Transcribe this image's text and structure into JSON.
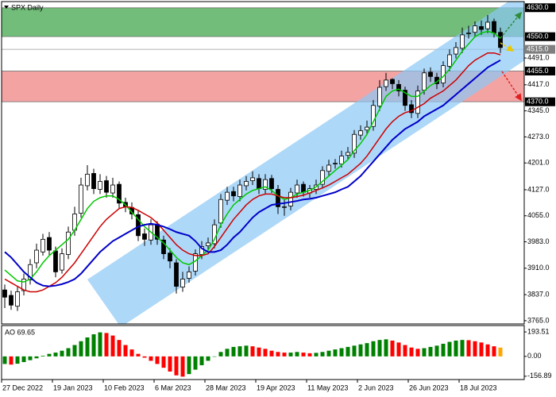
{
  "chart_data": [
    {
      "type": "candlestick",
      "title": "SPX Daily",
      "categories": [
        "27 Dec 2022",
        null,
        null,
        null,
        null,
        null,
        null,
        null,
        "19 Jan 2023",
        null,
        null,
        null,
        null,
        null,
        null,
        null,
        "10 Feb 2023",
        null,
        null,
        null,
        null,
        null,
        null,
        null,
        "6 Mar 2023",
        null,
        null,
        null,
        null,
        null,
        null,
        null,
        "28 Mar 2023",
        null,
        null,
        null,
        null,
        null,
        null,
        null,
        "19 Apr 2023",
        null,
        null,
        null,
        null,
        null,
        null,
        null,
        "11 May 2023",
        null,
        null,
        null,
        null,
        null,
        null,
        null,
        "2 Jun 2023",
        null,
        null,
        null,
        null,
        null,
        null,
        null,
        "26 Jun 2023",
        null,
        null,
        null,
        null,
        null,
        null,
        null,
        "18 Jul 2023",
        null,
        null,
        null,
        null,
        null,
        null
      ],
      "open": [
        3850,
        3835,
        3805,
        3848,
        3878,
        3925,
        3955,
        3995,
        3958,
        3905,
        3948,
        4015,
        4062,
        4138,
        4172,
        4128,
        4152,
        4118,
        4142,
        4092,
        4078,
        4058,
        4005,
        3988,
        4032,
        3988,
        3952,
        3925,
        3858,
        3882,
        3902,
        3948,
        3972,
        3978,
        4035,
        4098,
        4122,
        4108,
        4138,
        4152,
        4158,
        4128,
        4158,
        4128,
        4078,
        4082,
        4118,
        4142,
        4118,
        4128,
        4142,
        4178,
        4198,
        4198,
        4222,
        4228,
        4278,
        4292,
        4302,
        4358,
        4412,
        4432,
        4418,
        4402,
        4362,
        4338,
        4402,
        4452,
        4438,
        4422,
        4468,
        4502,
        4518,
        4558,
        4562,
        4578,
        4572,
        4592,
        4562
      ],
      "high": [
        3865,
        3848,
        3858,
        3895,
        3935,
        3978,
        4005,
        4010,
        3970,
        3965,
        4025,
        4080,
        4160,
        4195,
        4185,
        4170,
        4165,
        4160,
        4150,
        4105,
        4092,
        4070,
        4020,
        4045,
        4040,
        4000,
        3965,
        3935,
        3900,
        3915,
        3962,
        3985,
        3995,
        4045,
        4115,
        4135,
        4135,
        4155,
        4165,
        4178,
        4170,
        4170,
        4168,
        4140,
        4100,
        4132,
        4155,
        4150,
        4140,
        4155,
        4192,
        4210,
        4212,
        4235,
        4245,
        4292,
        4305,
        4318,
        4375,
        4430,
        4450,
        4435,
        4430,
        4412,
        4375,
        4415,
        4462,
        4465,
        4450,
        4482,
        4515,
        4535,
        4575,
        4580,
        4592,
        4595,
        4610,
        4600,
        4575
      ],
      "low": [
        3800,
        3795,
        3792,
        3835,
        3865,
        3910,
        3945,
        3945,
        3885,
        3895,
        3935,
        4000,
        4050,
        4125,
        4115,
        4115,
        4105,
        4105,
        4075,
        4065,
        4045,
        3985,
        3972,
        3975,
        3975,
        3935,
        3910,
        3840,
        3845,
        3870,
        3890,
        3935,
        3960,
        3965,
        4022,
        4085,
        4095,
        4095,
        4125,
        4140,
        4115,
        4115,
        4118,
        4060,
        4055,
        4070,
        4105,
        4108,
        4105,
        4115,
        4130,
        4165,
        4185,
        4188,
        4210,
        4215,
        4265,
        4280,
        4290,
        4345,
        4400,
        4405,
        4385,
        4345,
        4325,
        4325,
        4390,
        4425,
        4405,
        4410,
        4455,
        4490,
        4505,
        4545,
        4550,
        4555,
        4560,
        4548,
        4505
      ],
      "close": [
        3830,
        3808,
        3845,
        3880,
        3920,
        3960,
        3990,
        3960,
        3900,
        3950,
        4010,
        4060,
        4140,
        4170,
        4130,
        4150,
        4120,
        4140,
        4090,
        4080,
        4060,
        4000,
        3990,
        4030,
        3990,
        3950,
        3930,
        3860,
        3880,
        3900,
        3950,
        3970,
        3980,
        4030,
        4100,
        4120,
        4110,
        4140,
        4150,
        4160,
        4130,
        4155,
        4130,
        4080,
        4080,
        4120,
        4140,
        4120,
        4130,
        4140,
        4180,
        4195,
        4200,
        4220,
        4230,
        4280,
        4290,
        4300,
        4360,
        4410,
        4430,
        4420,
        4400,
        4360,
        4340,
        4400,
        4450,
        4440,
        4420,
        4470,
        4500,
        4520,
        4555,
        4560,
        4580,
        4570,
        4590,
        4560,
        4520
      ],
      "up_color": "#ffffff",
      "down_color": "#000000",
      "lines": [
        {
          "color": "#00c800",
          "values": [
            3905,
            3890,
            3875,
            3872,
            3880,
            3900,
            3925,
            3945,
            3960,
            3975,
            3990,
            4015,
            4045,
            4075,
            4095,
            4105,
            4110,
            4110,
            4100,
            4085,
            4065,
            4045,
            4025,
            4010,
            3995,
            3980,
            3960,
            3940,
            3925,
            3920,
            3930,
            3945,
            3960,
            3990,
            4030,
            4060,
            4085,
            4100,
            4115,
            4125,
            4130,
            4135,
            4125,
            4110,
            4100,
            4105,
            4115,
            4120,
            4125,
            4135,
            4150,
            4165,
            4180,
            4195,
            4210,
            4235,
            4255,
            4280,
            4315,
            4350,
            4385,
            4400,
            4405,
            4395,
            4385,
            4385,
            4400,
            4415,
            4425,
            4440,
            4460,
            4485,
            4510,
            4530,
            4550,
            4560,
            4565,
            4560,
            4545
          ]
        },
        {
          "color": "#cc0000",
          "values": [
            3880,
            3870,
            3860,
            3850,
            3845,
            3845,
            3850,
            3860,
            3870,
            3885,
            3905,
            3925,
            3950,
            3975,
            4000,
            4025,
            4045,
            4060,
            4075,
            4080,
            4078,
            4070,
            4060,
            4050,
            4035,
            4015,
            3995,
            3975,
            3960,
            3950,
            3945,
            3945,
            3950,
            3970,
            3995,
            4020,
            4045,
            4065,
            4085,
            4100,
            4110,
            4115,
            4115,
            4110,
            4105,
            4105,
            4108,
            4112,
            4118,
            4125,
            4132,
            4140,
            4150,
            4160,
            4170,
            4185,
            4200,
            4220,
            4245,
            4270,
            4295,
            4315,
            4330,
            4340,
            4345,
            4355,
            4365,
            4380,
            4390,
            4400,
            4415,
            4430,
            4450,
            4470,
            4485,
            4495,
            4505,
            4505,
            4500
          ]
        },
        {
          "color": "#0000c8",
          "values": [
            3955,
            3940,
            3920,
            3900,
            3885,
            3870,
            3862,
            3860,
            3862,
            3866,
            3872,
            3880,
            3895,
            3915,
            3935,
            3955,
            3970,
            3985,
            3995,
            4005,
            4015,
            4025,
            4030,
            4033,
            4030,
            4025,
            4018,
            4010,
            4005,
            4000,
            3985,
            3965,
            3955,
            3955,
            3960,
            3975,
            3995,
            4010,
            4030,
            4050,
            4065,
            4075,
            4085,
            4088,
            4090,
            4093,
            4096,
            4100,
            4102,
            4105,
            4110,
            4115,
            4120,
            4128,
            4135,
            4150,
            4165,
            4185,
            4205,
            4225,
            4245,
            4265,
            4280,
            4295,
            4305,
            4315,
            4330,
            4340,
            4350,
            4360,
            4375,
            4390,
            4405,
            4420,
            4435,
            4450,
            4465,
            4475,
            4485
          ]
        }
      ],
      "ylim": [
        3756,
        4647
      ],
      "yticks": [
        {
          "value": 4491,
          "label": "4491.0"
        },
        {
          "value": 4417,
          "label": "4417.0"
        },
        {
          "value": 4345,
          "label": "4345.0"
        },
        {
          "value": 4273,
          "label": "4273.0"
        },
        {
          "value": 4201,
          "label": "4201.0"
        },
        {
          "value": 4127,
          "label": "4127.0"
        },
        {
          "value": 4055,
          "label": "4055.0"
        },
        {
          "value": 3983,
          "label": "3983.0"
        },
        {
          "value": 3910,
          "label": "3910.0"
        },
        {
          "value": 3837,
          "label": "3837.0"
        },
        {
          "value": 3765,
          "label": "3765.0"
        }
      ],
      "levels": [
        {
          "value": 4630,
          "label": "4630.0",
          "bg": "#000000"
        },
        {
          "value": 4550,
          "label": "4550.0",
          "bg": "#000000"
        },
        {
          "value": 4515,
          "label": "4515.0",
          "bg": "#7f7f7f"
        },
        {
          "value": 4455,
          "label": "4455.0",
          "bg": "#000000"
        },
        {
          "value": 4370,
          "label": "4370.0",
          "bg": "#000000"
        }
      ],
      "zones": [
        {
          "from": 4550,
          "to": 4630,
          "color": "#72bd7a"
        },
        {
          "from": 4370,
          "to": 4455,
          "color": "#f4a3a3"
        }
      ]
    },
    {
      "type": "bar",
      "title": "AO 69.65",
      "values": [
        -60,
        -65,
        -58,
        -45,
        -30,
        -15,
        5,
        20,
        30,
        45,
        65,
        90,
        120,
        150,
        175,
        190,
        185,
        165,
        130,
        90,
        55,
        20,
        -10,
        -35,
        -60,
        -90,
        -120,
        -150,
        -160,
        -140,
        -105,
        -70,
        -35,
        0,
        35,
        60,
        75,
        80,
        85,
        80,
        70,
        60,
        45,
        35,
        30,
        30,
        35,
        30,
        25,
        28,
        35,
        45,
        55,
        65,
        75,
        85,
        95,
        105,
        120,
        130,
        135,
        125,
        110,
        90,
        70,
        60,
        65,
        75,
        85,
        100,
        115,
        125,
        130,
        128,
        120,
        110,
        95,
        80,
        69.65
      ],
      "up_color": "#008000",
      "down_color": "#ff0000",
      "last_color": "#ffa500",
      "ylim": [
        -183,
        244
      ],
      "yticks": [
        193.51,
        {
          "value": 0,
          "label": "0.00"
        },
        -156.89
      ]
    }
  ]
}
